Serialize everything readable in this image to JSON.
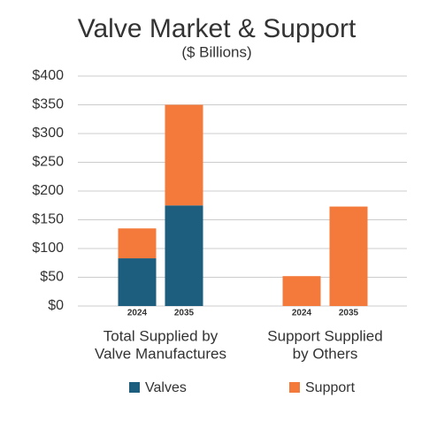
{
  "chart_data": {
    "type": "stacked_bar",
    "title": "Valve Market & Support",
    "subtitle": "($ Billions)",
    "categories": [
      "2024",
      "2035",
      "2024",
      "2035"
    ],
    "group_labels": [
      [
        "Total Supplied by",
        "Valve Manufactures"
      ],
      [
        "Support Supplied",
        "by Others"
      ]
    ],
    "series": [
      {
        "name": "Valves",
        "color": "#1d5d7e",
        "values": [
          83,
          175,
          null,
          null
        ]
      },
      {
        "name": "Support",
        "color": "#f47a3b",
        "values": [
          52,
          175,
          52,
          173
        ]
      }
    ],
    "ylim": [
      0,
      400
    ],
    "yticks": [
      {
        "value": 0,
        "label": "$0"
      },
      {
        "value": 50,
        "label": "$50"
      },
      {
        "value": 100,
        "label": "$100"
      },
      {
        "value": 150,
        "label": "$150"
      },
      {
        "value": 200,
        "label": "$200"
      },
      {
        "value": 250,
        "label": "$250"
      },
      {
        "value": 300,
        "label": "$300"
      },
      {
        "value": 350,
        "label": "$350"
      },
      {
        "value": 400,
        "label": "$400"
      }
    ],
    "grid": true
  }
}
